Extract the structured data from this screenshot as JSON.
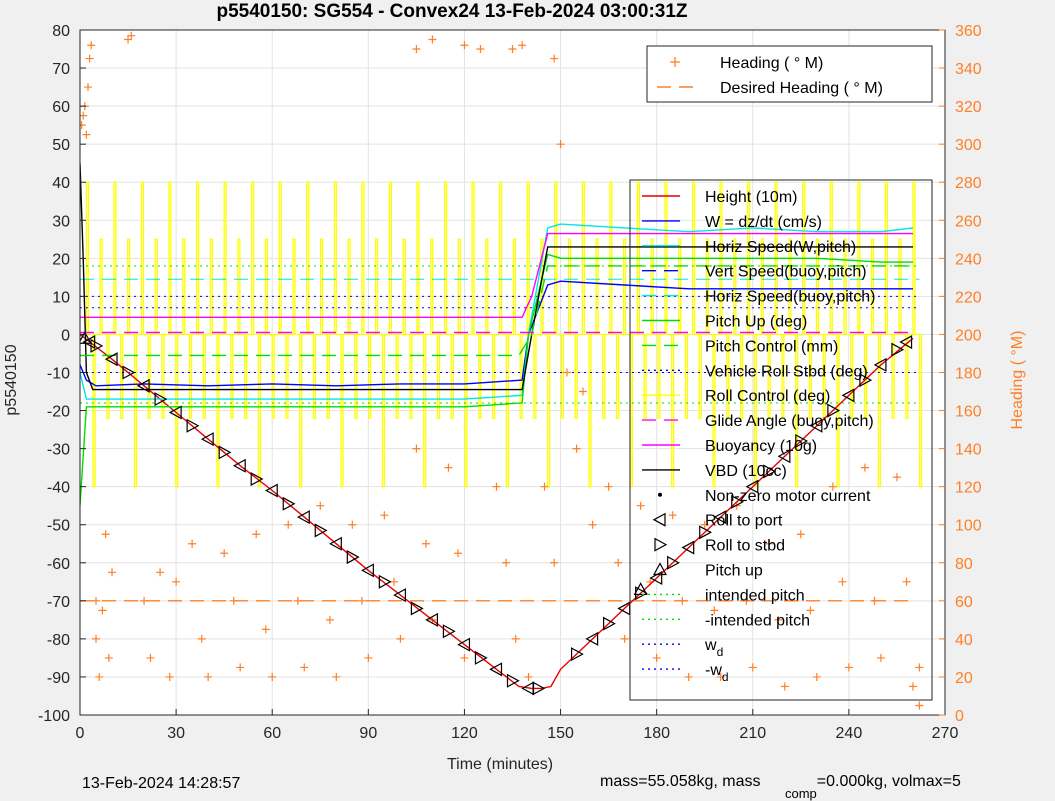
{
  "chart_data": {
    "type": "line",
    "title": "p5540150: SG554 - Convex24 13-Feb-2024 03:00:31Z",
    "xlabel": "Time (minutes)",
    "ylabel": "p5540150",
    "ylabel_right": "Heading (  °M)",
    "xlim": [
      0,
      270
    ],
    "ylim": [
      -100,
      80
    ],
    "ylim_right": [
      0,
      360
    ],
    "xticks": [
      "0",
      "30",
      "60",
      "90",
      "120",
      "150",
      "180",
      "210",
      "240",
      "270"
    ],
    "yticks": [
      "80",
      "70",
      "60",
      "50",
      "40",
      "30",
      "20",
      "10",
      "0",
      "-10",
      "-20",
      "-30",
      "-40",
      "-50",
      "-60",
      "-70",
      "-80",
      "-90",
      "-100"
    ],
    "yticks_right": [
      "360",
      "340",
      "320",
      "300",
      "280",
      "260",
      "240",
      "220",
      "200",
      "180",
      "160",
      "140",
      "120",
      "100",
      "80",
      "60",
      "40",
      "20",
      "0"
    ],
    "grid": true,
    "legend_heading_position": "top-right",
    "legend_main_position": "right",
    "legend_heading": [
      {
        "label": "Heading (  ° M)",
        "color": "#ff7f27",
        "marker": "plus"
      },
      {
        "label": "Desired Heading (    ° M)",
        "color": "#ff7f27",
        "style": "dashed"
      }
    ],
    "legend_main": [
      {
        "label": "Height (10m)",
        "color": "#e60000",
        "style": "solid"
      },
      {
        "label": "W = dz/dt (cm/s)",
        "color": "#0000ff",
        "style": "solid"
      },
      {
        "label": "Horiz Speed(W,pitch)",
        "color": "#00e5e5",
        "style": "solid"
      },
      {
        "label": "Vert Speed(buoy,pitch)",
        "color": "#0000ff",
        "style": "dashed"
      },
      {
        "label": "Horiz Speed(buoy,pitch)",
        "color": "#00e5e5",
        "style": "dashed"
      },
      {
        "label": "Pitch Up (deg)",
        "color": "#00dd00",
        "style": "solid"
      },
      {
        "label": "Pitch Control (mm)",
        "color": "#00dd00",
        "style": "dashed"
      },
      {
        "label": "Vehicle Roll Stbd (deg)",
        "color": "#0000ff",
        "style": "dotted"
      },
      {
        "label": "Roll Control (deg)",
        "color": "#ffff00",
        "style": "solid"
      },
      {
        "label": "Glide Angle (buoy,pitch)",
        "color": "#ff00ff",
        "style": "dashed"
      },
      {
        "label": "Buoyancy (10g)",
        "color": "#ff00ff",
        "style": "solid"
      },
      {
        "label": "VBD (10cc)",
        "color": "#000000",
        "style": "solid"
      },
      {
        "label": "Non-zero motor current",
        "color": "#000000",
        "marker": "dot"
      },
      {
        "label": "Roll to port",
        "color": "#000000",
        "marker": "tri-left"
      },
      {
        "label": "Roll to stbd",
        "color": "#000000",
        "marker": "tri-right"
      },
      {
        "label": "Pitch up",
        "color": "#000000",
        "marker": "tri-up"
      },
      {
        "label": "intended pitch",
        "color": "#00dd00",
        "style": "dotted"
      },
      {
        "label": "-intended pitch",
        "color": "#00dd00",
        "style": "dotted"
      },
      {
        "label": "w_d",
        "color": "#0000ff",
        "style": "dotted"
      },
      {
        "label": "-w_d",
        "color": "#0000ff",
        "style": "dotted"
      }
    ],
    "series": [
      {
        "name": "Height (10m)",
        "color": "#e60000",
        "x": [
          0,
          10,
          20,
          30,
          40,
          50,
          60,
          70,
          80,
          90,
          100,
          110,
          120,
          130,
          137,
          141,
          144,
          147,
          150,
          160,
          170,
          180,
          190,
          200,
          210,
          220,
          230,
          240,
          250,
          260
        ],
        "y": [
          0,
          -6.5,
          -13.5,
          -20.5,
          -27.5,
          -34.5,
          -41,
          -48,
          -55,
          -62,
          -68.5,
          -75,
          -81.5,
          -88,
          -92.5,
          -93,
          -93,
          -92.5,
          -88,
          -80,
          -72,
          -64,
          -56,
          -48,
          -40,
          -32,
          -24,
          -16,
          -8,
          -1
        ]
      },
      {
        "name": "W = dz/dt (cm/s)",
        "color": "#0000ff",
        "x": [
          0,
          2,
          5,
          20,
          40,
          60,
          80,
          100,
          120,
          138,
          140,
          146,
          150,
          170,
          190,
          210,
          230,
          250,
          260
        ],
        "y": [
          -8,
          -12,
          -13.5,
          -13,
          -13.5,
          -13,
          -13.5,
          -13,
          -13,
          -12,
          0,
          13,
          14,
          13,
          12,
          12,
          12,
          12,
          12
        ]
      },
      {
        "name": "Horiz Speed(W,pitch)",
        "color": "#00e5e5",
        "x": [
          0,
          2,
          5,
          20,
          40,
          60,
          80,
          100,
          120,
          138,
          140,
          146,
          150,
          170,
          190,
          210,
          230,
          250,
          260
        ],
        "y": [
          -10,
          -17,
          -17,
          -17,
          -17,
          -17,
          -17,
          -17,
          -17,
          -16,
          0,
          28,
          29,
          28,
          27,
          28,
          27,
          27,
          28
        ]
      },
      {
        "name": "Pitch Up (deg)",
        "color": "#00dd00",
        "x": [
          0,
          2,
          5,
          20,
          40,
          60,
          80,
          100,
          120,
          138,
          140,
          146,
          150,
          170,
          190,
          210,
          230,
          250,
          260
        ],
        "y": [
          -45,
          -19,
          -19,
          -19,
          -19,
          -19,
          -19,
          -19,
          -19,
          -18,
          0,
          21,
          20,
          20,
          20,
          20,
          20,
          19,
          19
        ]
      },
      {
        "name": "Buoyancy (10g)",
        "color": "#ff00ff",
        "x": [
          0,
          138,
          141,
          146,
          260
        ],
        "y": [
          4.5,
          4.5,
          10,
          26.5,
          26.5
        ]
      },
      {
        "name": "VBD (10cc)",
        "color": "#000000",
        "x": [
          0,
          1,
          2,
          4,
          138,
          141,
          146,
          260
        ],
        "y": [
          45,
          20,
          -10,
          -14.5,
          -14.5,
          0,
          23,
          23
        ]
      },
      {
        "name": "Pitch Control (mm)",
        "color": "#00dd00",
        "x": [
          0,
          137,
          141,
          146,
          260
        ],
        "y": [
          -5.5,
          -5.5,
          0,
          18,
          18
        ]
      },
      {
        "name": "Glide Angle (buoy,pitch)",
        "color": "#ff00ff",
        "x": [
          0,
          260
        ],
        "y": [
          0.5,
          0.5
        ]
      }
    ],
    "reference_lines": [
      {
        "name": "intended pitch",
        "color": "#00dd00",
        "y": 18
      },
      {
        "name": "-intended pitch",
        "color": "#00dd00",
        "y": -18
      },
      {
        "name": "w_d",
        "color": "#0000ff",
        "y": 10
      },
      {
        "name": "-w_d",
        "color": "#0000ff",
        "y": -10
      },
      {
        "name": "Horiz Speed(buoy,pitch)",
        "color": "#00e5e5",
        "y": 14.5
      },
      {
        "name": "Vert Speed(buoy,pitch)",
        "color": "#0000ff",
        "y": 7
      }
    ],
    "heading_desired": {
      "x": [
        0,
        140,
        260
      ],
      "y_right": [
        60,
        60,
        60
      ]
    },
    "heading_sample_points": [
      [
        0.5,
        310
      ],
      [
        1,
        315
      ],
      [
        1.5,
        320
      ],
      [
        2,
        305
      ],
      [
        2.5,
        330
      ],
      [
        3,
        345
      ],
      [
        3.5,
        352
      ],
      [
        5,
        60
      ],
      [
        5,
        40
      ],
      [
        6,
        20
      ],
      [
        7,
        55
      ],
      [
        8,
        95
      ],
      [
        9,
        30
      ],
      [
        10,
        75
      ],
      [
        15,
        355
      ],
      [
        16,
        357
      ],
      [
        20,
        60
      ],
      [
        22,
        30
      ],
      [
        25,
        75
      ],
      [
        28,
        20
      ],
      [
        30,
        70
      ],
      [
        35,
        90
      ],
      [
        38,
        40
      ],
      [
        40,
        20
      ],
      [
        45,
        85
      ],
      [
        48,
        60
      ],
      [
        50,
        25
      ],
      [
        55,
        95
      ],
      [
        58,
        45
      ],
      [
        60,
        20
      ],
      [
        65,
        100
      ],
      [
        68,
        60
      ],
      [
        70,
        25
      ],
      [
        75,
        110
      ],
      [
        78,
        50
      ],
      [
        80,
        20
      ],
      [
        85,
        100
      ],
      [
        88,
        60
      ],
      [
        90,
        30
      ],
      [
        95,
        105
      ],
      [
        98,
        70
      ],
      [
        100,
        40
      ],
      [
        105,
        140
      ],
      [
        108,
        90
      ],
      [
        110,
        50
      ],
      [
        115,
        130
      ],
      [
        118,
        85
      ],
      [
        120,
        30
      ],
      [
        105,
        350
      ],
      [
        110,
        355
      ],
      [
        120,
        352
      ],
      [
        125,
        350
      ],
      [
        135,
        350
      ],
      [
        138,
        352
      ],
      [
        130,
        120
      ],
      [
        133,
        80
      ],
      [
        136,
        40
      ],
      [
        140,
        20
      ],
      [
        145,
        120
      ],
      [
        148,
        80
      ],
      [
        148,
        345
      ],
      [
        150,
        300
      ],
      [
        152,
        180
      ],
      [
        155,
        140
      ],
      [
        157,
        170
      ],
      [
        160,
        100
      ],
      [
        165,
        120
      ],
      [
        168,
        80
      ],
      [
        170,
        40
      ],
      [
        175,
        110
      ],
      [
        178,
        70
      ],
      [
        180,
        30
      ],
      [
        185,
        105
      ],
      [
        188,
        60
      ],
      [
        190,
        20
      ],
      [
        195,
        100
      ],
      [
        198,
        55
      ],
      [
        200,
        20
      ],
      [
        205,
        110
      ],
      [
        208,
        60
      ],
      [
        210,
        25
      ],
      [
        215,
        90
      ],
      [
        218,
        50
      ],
      [
        220,
        15
      ],
      [
        225,
        95
      ],
      [
        228,
        55
      ],
      [
        230,
        20
      ],
      [
        235,
        120
      ],
      [
        238,
        70
      ],
      [
        240,
        25
      ],
      [
        245,
        130
      ],
      [
        248,
        60
      ],
      [
        250,
        30
      ],
      [
        255,
        125
      ],
      [
        258,
        70
      ],
      [
        260,
        15
      ],
      [
        262,
        5
      ],
      [
        262,
        25
      ]
    ],
    "motor_marks_port": [
      [
        3,
        -2
      ],
      [
        10,
        -6.5
      ],
      [
        20,
        -13.5
      ],
      [
        30,
        -20.5
      ],
      [
        40,
        -27.5
      ],
      [
        50,
        -34.5
      ],
      [
        60,
        -41
      ],
      [
        70,
        -48
      ],
      [
        80,
        -55
      ],
      [
        90,
        -62
      ],
      [
        100,
        -68.5
      ],
      [
        110,
        -75
      ],
      [
        120,
        -81.5
      ],
      [
        130,
        -88
      ],
      [
        140,
        -93
      ],
      [
        160,
        -80
      ],
      [
        170,
        -72
      ],
      [
        180,
        -64
      ],
      [
        190,
        -56
      ],
      [
        200,
        -48
      ],
      [
        210,
        -40
      ],
      [
        220,
        -32
      ],
      [
        230,
        -24
      ],
      [
        240,
        -16
      ],
      [
        250,
        -8
      ],
      [
        258,
        -2
      ]
    ],
    "motor_marks_stbd": [
      [
        5,
        -3
      ],
      [
        15,
        -10
      ],
      [
        25,
        -17
      ],
      [
        35,
        -24
      ],
      [
        45,
        -31
      ],
      [
        55,
        -38
      ],
      [
        65,
        -44.5
      ],
      [
        75,
        -51.5
      ],
      [
        85,
        -58.5
      ],
      [
        95,
        -65
      ],
      [
        105,
        -72
      ],
      [
        115,
        -78
      ],
      [
        125,
        -85
      ],
      [
        135,
        -91
      ],
      [
        143,
        -93
      ],
      [
        155,
        -84
      ],
      [
        165,
        -76
      ],
      [
        175,
        -68
      ],
      [
        185,
        -60
      ],
      [
        195,
        -52
      ],
      [
        205,
        -44
      ],
      [
        215,
        -36
      ],
      [
        225,
        -28
      ],
      [
        235,
        -20
      ],
      [
        245,
        -12
      ],
      [
        255,
        -4
      ]
    ],
    "pitch_up_marks": [
      [
        1.5,
        -1
      ],
      [
        175,
        -67
      ]
    ]
  },
  "footer": {
    "timestamp": "13-Feb-2024 14:28:57",
    "mass_text": "mass=55.058kg, mass",
    "comp_sub": "comp",
    "comp_text": "=0.000kg, volmax=5"
  }
}
